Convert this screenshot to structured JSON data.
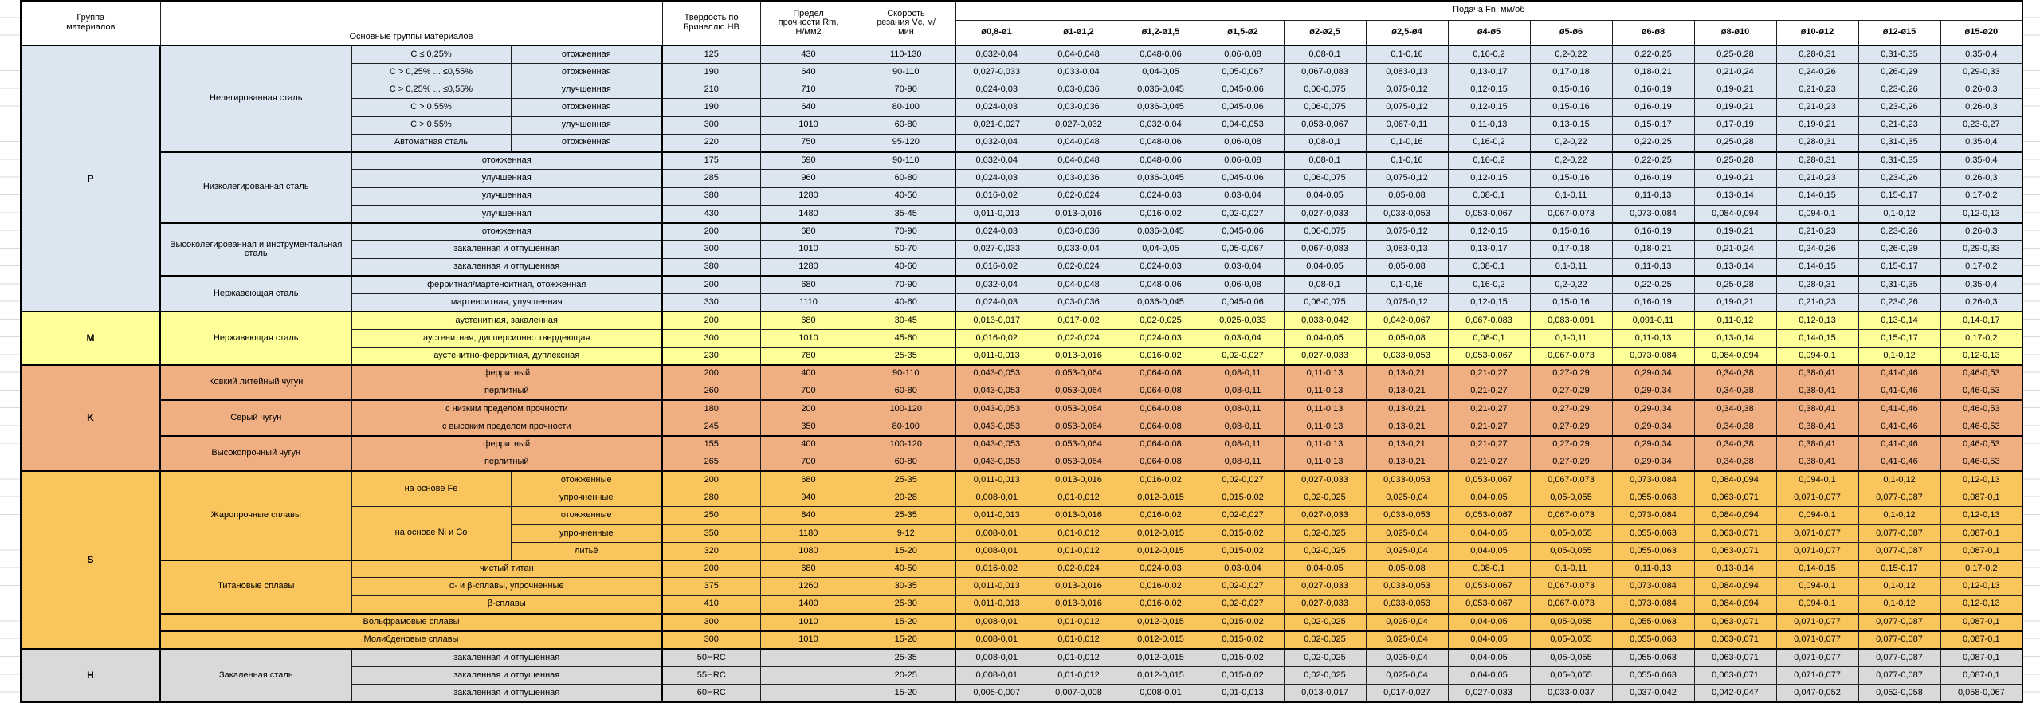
{
  "header": {
    "group": "Группа материалов",
    "main": "Основные группы материалов",
    "hardness": "Твердость по Бринеллю HB",
    "strength": "Предел прочности Rm, Н/мм2",
    "speed": "Скорость резания Vc, м/мин",
    "feed": "Подача Fn, мм/об",
    "diameters": [
      "ø0,8-ø1",
      "ø1-ø1,2",
      "ø1,2-ø1,5",
      "ø1,5-ø2",
      "ø2-ø2,5",
      "ø2,5-ø4",
      "ø4-ø5",
      "ø5-ø6",
      "ø6-ø8",
      "ø8-ø10",
      "ø10-ø12",
      "ø12-ø15",
      "ø15-ø20"
    ]
  },
  "feed_patterns": {
    "A": [
      "0,032-0,04",
      "0,04-0,048",
      "0,048-0,06",
      "0,06-0,08",
      "0,08-0,1",
      "0,1-0,16",
      "0,16-0,2",
      "0,2-0,22",
      "0,22-0,25",
      "0,25-0,28",
      "0,28-0,31",
      "0,31-0,35",
      "0,35-0,4"
    ],
    "B": [
      "0,027-0,033",
      "0,033-0,04",
      "0,04-0,05",
      "0,05-0,067",
      "0,067-0,083",
      "0,083-0,13",
      "0,13-0,17",
      "0,17-0,18",
      "0,18-0,21",
      "0,21-0,24",
      "0,24-0,26",
      "0,26-0,29",
      "0,29-0,33"
    ],
    "C": [
      "0,024-0,03",
      "0,03-0,036",
      "0,036-0,045",
      "0,045-0,06",
      "0,06-0,075",
      "0,075-0,12",
      "0,12-0,15",
      "0,15-0,16",
      "0,16-0,19",
      "0,19-0,21",
      "0,21-0,23",
      "0,23-0,26",
      "0,26-0,3"
    ],
    "D": [
      "0,021-0,027",
      "0,027-0,032",
      "0,032-0,04",
      "0,04-0,053",
      "0,053-0,067",
      "0,067-0,11",
      "0,11-0,13",
      "0,13-0,15",
      "0,15-0,17",
      "0,17-0,19",
      "0,19-0,21",
      "0,21-0,23",
      "0,23-0,27"
    ],
    "E": [
      "0,016-0,02",
      "0,02-0,024",
      "0,024-0,03",
      "0,03-0,04",
      "0,04-0,05",
      "0,05-0,08",
      "0,08-0,1",
      "0,1-0,11",
      "0,11-0,13",
      "0,13-0,14",
      "0,14-0,15",
      "0,15-0,17",
      "0,17-0,2"
    ],
    "F": [
      "0,011-0,013",
      "0,013-0,016",
      "0,016-0,02",
      "0,02-0,027",
      "0,027-0,033",
      "0,033-0,053",
      "0,053-0,067",
      "0,067-0,073",
      "0,073-0,084",
      "0,084-0,094",
      "0,094-0,1",
      "0,1-0,12",
      "0,12-0,13"
    ],
    "G": [
      "0,013-0,017",
      "0,017-0,02",
      "0,02-0,025",
      "0,025-0,033",
      "0,033-0,042",
      "0,042-0,067",
      "0,067-0,083",
      "0,083-0,091",
      "0,091-0,11",
      "0,11-0,12",
      "0,12-0,13",
      "0,13-0,14",
      "0,14-0,17"
    ],
    "K": [
      "0,043-0,053",
      "0,053-0,064",
      "0,064-0,08",
      "0,08-0,11",
      "0,11-0,13",
      "0,13-0,21",
      "0,21-0,27",
      "0,27-0,29",
      "0,29-0,34",
      "0,34-0,38",
      "0,38-0,41",
      "0,41-0,46",
      "0,46-0,53"
    ],
    "S": [
      "0,008-0,01",
      "0,01-0,012",
      "0,012-0,015",
      "0,015-0,02",
      "0,02-0,025",
      "0,025-0,04",
      "0,04-0,05",
      "0,05-0,055",
      "0,055-0,063",
      "0,063-0,071",
      "0,071-0,077",
      "0,077-0,087",
      "0,087-0,1"
    ],
    "H": [
      "0,005-0,007",
      "0,007-0,008",
      "0,008-0,01",
      "0,01-0,013",
      "0,013-0,017",
      "0,017-0,027",
      "0,027-0,033",
      "0,033-0,037",
      "0,037-0,042",
      "0,042-0,047",
      "0,047-0,052",
      "0,052-0,058",
      "0,058-0,067"
    ]
  },
  "sections": [
    {
      "code": "P",
      "color": "#DCE6F1",
      "rows": [
        {
          "cells": [
            {
              "t": "Нелегированная сталь",
              "rs": 6
            },
            {
              "t": "C ≤ 0,25%"
            },
            {
              "t": "отожженная"
            }
          ],
          "hb": "125",
          "rm": "430",
          "vc": "110-130",
          "fp": "A"
        },
        {
          "cells": [
            {
              "t": "C > 0,25% ... ≤0,55%"
            },
            {
              "t": "отожженная"
            }
          ],
          "hb": "190",
          "rm": "640",
          "vc": "90-110",
          "fp": "B"
        },
        {
          "cells": [
            {
              "t": "C > 0,25% ... ≤0,55%"
            },
            {
              "t": "улучшенная"
            }
          ],
          "hb": "210",
          "rm": "710",
          "vc": "70-90",
          "fp": "C"
        },
        {
          "cells": [
            {
              "t": "C > 0,55%"
            },
            {
              "t": "отожженная"
            }
          ],
          "hb": "190",
          "rm": "640",
          "vc": "80-100",
          "fp": "C"
        },
        {
          "cells": [
            {
              "t": "C > 0,55%"
            },
            {
              "t": "улучшенная"
            }
          ],
          "hb": "300",
          "rm": "1010",
          "vc": "60-80",
          "fp": "D"
        },
        {
          "cells": [
            {
              "t": "Автоматная сталь"
            },
            {
              "t": "отожженная"
            }
          ],
          "hb": "220",
          "rm": "750",
          "vc": "95-120",
          "fp": "A"
        },
        {
          "mt": true,
          "cells": [
            {
              "t": "Низколегированная сталь",
              "rs": 4
            },
            {
              "t": "отожженная",
              "cs": 2
            }
          ],
          "hb": "175",
          "rm": "590",
          "vc": "90-110",
          "fp": "A"
        },
        {
          "cells": [
            {
              "t": "улучшенная",
              "cs": 2
            }
          ],
          "hb": "285",
          "rm": "960",
          "vc": "60-80",
          "fp": "C"
        },
        {
          "cells": [
            {
              "t": "улучшенная",
              "cs": 2
            }
          ],
          "hb": "380",
          "rm": "1280",
          "vc": "40-50",
          "fp": "E"
        },
        {
          "cells": [
            {
              "t": "улучшенная",
              "cs": 2
            }
          ],
          "hb": "430",
          "rm": "1480",
          "vc": "35-45",
          "fp": "F"
        },
        {
          "mt": true,
          "cells": [
            {
              "t": "Высоколегированная и инструментальная сталь",
              "rs": 3
            },
            {
              "t": "отожженная",
              "cs": 2
            }
          ],
          "hb": "200",
          "rm": "680",
          "vc": "70-90",
          "fp": "C"
        },
        {
          "cells": [
            {
              "t": "закаленная и отпущенная",
              "cs": 2
            }
          ],
          "hb": "300",
          "rm": "1010",
          "vc": "50-70",
          "fp": "B"
        },
        {
          "cells": [
            {
              "t": "закаленная и отпущенная",
              "cs": 2
            }
          ],
          "hb": "380",
          "rm": "1280",
          "vc": "40-60",
          "fp": "E"
        },
        {
          "mt": true,
          "cells": [
            {
              "t": "Нержавеющая сталь",
              "rs": 2
            },
            {
              "t": "ферритная/мартенситная, отожженная",
              "cs": 2
            }
          ],
          "hb": "200",
          "rm": "680",
          "vc": "70-90",
          "fp": "A"
        },
        {
          "cells": [
            {
              "t": "мартенситная, улучшенная",
              "cs": 2
            }
          ],
          "hb": "330",
          "rm": "1110",
          "vc": "40-60",
          "fp": "C"
        }
      ]
    },
    {
      "code": "M",
      "color": "#FFFF99",
      "rows": [
        {
          "cells": [
            {
              "t": "Нержавеющая сталь",
              "rs": 3
            },
            {
              "t": "аустенитная, закаленная",
              "cs": 2
            }
          ],
          "hb": "200",
          "rm": "680",
          "vc": "30-45",
          "fp": "G"
        },
        {
          "cells": [
            {
              "t": "аустенитная, дисперсионно твердеющая",
              "cs": 2
            }
          ],
          "hb": "300",
          "rm": "1010",
          "vc": "45-60",
          "fp": "E"
        },
        {
          "cells": [
            {
              "t": "аустенитно-ферритная, дуплексная",
              "cs": 2
            }
          ],
          "hb": "230",
          "rm": "780",
          "vc": "25-35",
          "fp": "F"
        }
      ]
    },
    {
      "code": "K",
      "color": "#F0AF82",
      "rows": [
        {
          "cells": [
            {
              "t": "Ковкий литейный чугун",
              "rs": 2
            },
            {
              "t": "ферритный",
              "cs": 2
            }
          ],
          "hb": "200",
          "rm": "400",
          "vc": "90-110",
          "fp": "K"
        },
        {
          "cells": [
            {
              "t": "перлитный",
              "cs": 2
            }
          ],
          "hb": "260",
          "rm": "700",
          "vc": "60-80",
          "fp": "K"
        },
        {
          "mt": true,
          "cells": [
            {
              "t": "Серый чугун",
              "rs": 2
            },
            {
              "t": "с низким пределом прочности",
              "cs": 2
            }
          ],
          "hb": "180",
          "rm": "200",
          "vc": "100-120",
          "fp": "K"
        },
        {
          "cells": [
            {
              "t": "с высоким пределом прочности",
              "cs": 2
            }
          ],
          "hb": "245",
          "rm": "350",
          "vc": "80-100",
          "fp": "K"
        },
        {
          "mt": true,
          "cells": [
            {
              "t": "Высокопрочный чугун",
              "rs": 2
            },
            {
              "t": "ферритный",
              "cs": 2
            }
          ],
          "hb": "155",
          "rm": "400",
          "vc": "100-120",
          "fp": "K"
        },
        {
          "cells": [
            {
              "t": "перлитный",
              "cs": 2
            }
          ],
          "hb": "265",
          "rm": "700",
          "vc": "60-80",
          "fp": "K"
        }
      ]
    },
    {
      "code": "S",
      "color": "#FAC55D",
      "rows": [
        {
          "cells": [
            {
              "t": "Жаропрочные сплавы",
              "rs": 5
            },
            {
              "t": "на основе Fe",
              "rs": 2
            },
            {
              "t": "отожженные"
            }
          ],
          "hb": "200",
          "rm": "680",
          "vc": "25-35",
          "fp": "F"
        },
        {
          "cells": [
            {
              "t": "упрочненные"
            }
          ],
          "hb": "280",
          "rm": "940",
          "vc": "20-28",
          "fp": "S"
        },
        {
          "cells": [
            {
              "t": "на основе Ni и Co",
              "rs": 3
            },
            {
              "t": "отожженные"
            }
          ],
          "hb": "250",
          "rm": "840",
          "vc": "25-35",
          "fp": "F"
        },
        {
          "cells": [
            {
              "t": "упрочненные"
            }
          ],
          "hb": "350",
          "rm": "1180",
          "vc": "9-12",
          "fp": "S"
        },
        {
          "cells": [
            {
              "t": "литьё"
            }
          ],
          "hb": "320",
          "rm": "1080",
          "vc": "15-20",
          "fp": "S"
        },
        {
          "mt": true,
          "cells": [
            {
              "t": "Титановые сплавы",
              "rs": 3
            },
            {
              "t": "чистый титан",
              "cs": 2
            }
          ],
          "hb": "200",
          "rm": "680",
          "vc": "40-50",
          "fp": "E"
        },
        {
          "cells": [
            {
              "t": "α- и β-сплавы, упрочненные",
              "cs": 2
            }
          ],
          "hb": "375",
          "rm": "1260",
          "vc": "30-35",
          "fp": "F"
        },
        {
          "cells": [
            {
              "t": "β-сплавы",
              "cs": 2
            }
          ],
          "hb": "410",
          "rm": "1400",
          "vc": "25-30",
          "fp": "F"
        },
        {
          "mt": true,
          "cells": [
            {
              "t": "Вольфрамовые сплавы",
              "cs": 3
            }
          ],
          "hb": "300",
          "rm": "1010",
          "vc": "15-20",
          "fp": "S"
        },
        {
          "mt": true,
          "cells": [
            {
              "t": "Молибденовые сплавы",
              "cs": 3
            }
          ],
          "hb": "300",
          "rm": "1010",
          "vc": "15-20",
          "fp": "S"
        }
      ]
    },
    {
      "code": "H",
      "color": "#D9D9D9",
      "rows": [
        {
          "cells": [
            {
              "t": "Закаленная сталь",
              "rs": 3
            },
            {
              "t": "закаленная и отпущенная",
              "cs": 2
            }
          ],
          "hb": "50HRC",
          "rm": "",
          "vc": "25-35",
          "fp": "S"
        },
        {
          "cells": [
            {
              "t": "закаленная и отпущенная",
              "cs": 2
            }
          ],
          "hb": "55HRC",
          "rm": "",
          "vc": "20-25",
          "fp": "S"
        },
        {
          "cells": [
            {
              "t": "закаленная и отпущенная",
              "cs": 2
            }
          ],
          "hb": "60HRC",
          "rm": "",
          "vc": "15-20",
          "fp": "H"
        }
      ]
    }
  ]
}
